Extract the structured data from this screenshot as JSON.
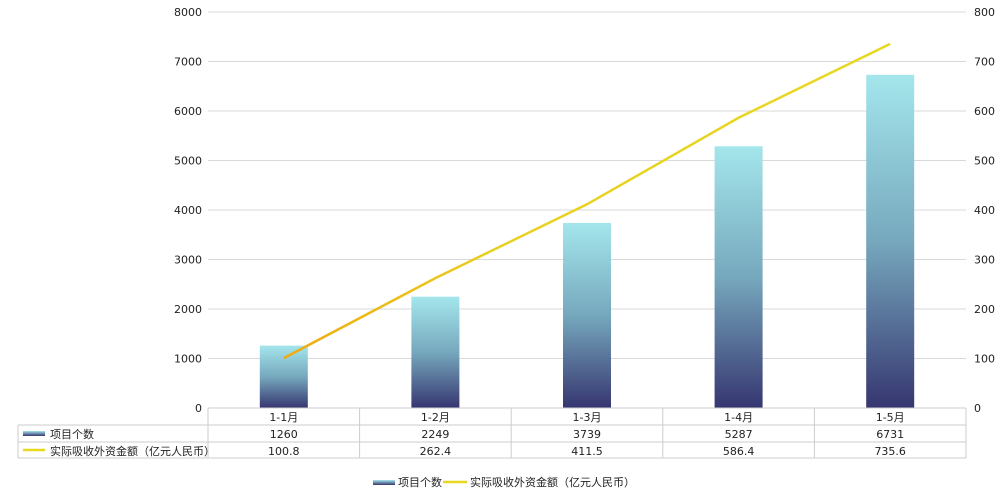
{
  "chart_data": {
    "type": "bar+line",
    "categories": [
      "1-1月",
      "1-2月",
      "1-3月",
      "1-4月",
      "1-5月"
    ],
    "series": [
      {
        "name": "项目个数",
        "type": "bar",
        "axis": "left",
        "values": [
          1260,
          2249,
          3739,
          5287,
          6731
        ],
        "colors": [
          "#a4e6ec",
          "#363670"
        ]
      },
      {
        "name": "实际吸收外资金额（亿元人民币）",
        "type": "line",
        "axis": "right",
        "values": [
          100.8,
          262.4,
          411.5,
          586.4,
          735.6
        ],
        "color": "#e8d820"
      }
    ],
    "y_left": {
      "range": [
        0,
        8000
      ],
      "ticks": [
        0,
        1000,
        2000,
        3000,
        4000,
        5000,
        6000,
        7000,
        8000
      ]
    },
    "y_right": {
      "range": [
        0,
        800
      ],
      "ticks": [
        0,
        100,
        200,
        300,
        400,
        500,
        600,
        700,
        800
      ]
    },
    "grid": true,
    "legend": "bottom",
    "data_table": true
  }
}
